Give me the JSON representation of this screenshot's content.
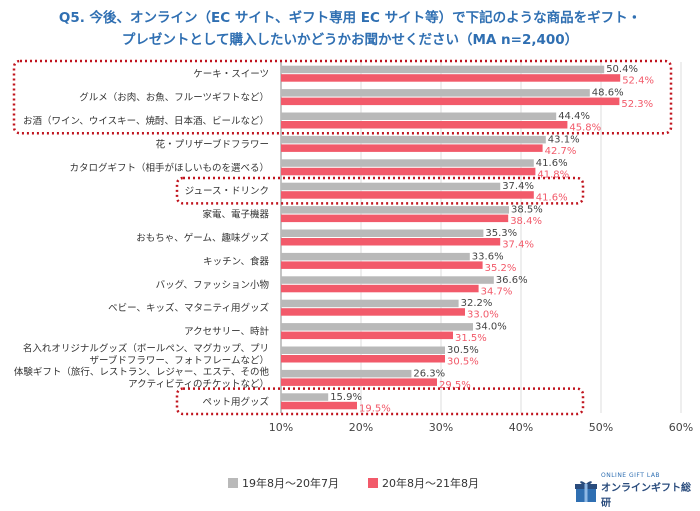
{
  "title_line1": "Q5. 今後、オンライン（EC サイト、ギフト専用 EC サイト等）で下記のような商品をギフト・",
  "title_line2": "プレゼントとして購入したいかどうかお聞かせください（MA n=2,400）",
  "colors": {
    "series1": "#b9b9b9",
    "series2": "#f25a6a",
    "highlight": "#c0141e",
    "title": "#2f6fb2"
  },
  "logo": {
    "small": "ONLINE GIFT LAB",
    "big": "オンラインギフト総研"
  },
  "chart_data": {
    "type": "bar",
    "orientation": "horizontal",
    "categories": [
      "ケーキ・スイーツ",
      "グルメ（お肉、お魚、フルーツギフトなど）",
      "お酒（ワイン、ウイスキー、焼酎、日本酒、ビールなど）",
      "花・プリザーブドフラワー",
      "カタログギフト（相手がほしいものを選べる）",
      "ジュース・ドリンク",
      "家電、電子機器",
      "おもちゃ、ゲーム、趣味グッズ",
      "キッチン、食器",
      "バッグ、ファッション小物",
      "ベビー、キッズ、マタニティ用グッズ",
      "アクセサリー、時計",
      "名入れオリジナルグッズ（ボールペン、マグカップ、プリ\nザーブドフラワー、フォトフレームなど）",
      "体験ギフト（旅行、レストラン、レジャー、エステ、その他\nアクティビティのチケットなど）",
      "ペット用グッズ"
    ],
    "series": [
      {
        "name": "19年8月～20年7月",
        "values": [
          50.4,
          48.6,
          44.4,
          43.1,
          41.6,
          37.4,
          38.5,
          35.3,
          33.6,
          36.6,
          32.2,
          34.0,
          30.5,
          26.3,
          15.9
        ]
      },
      {
        "name": "20年8月～21年8月",
        "values": [
          52.4,
          52.3,
          45.8,
          42.7,
          41.8,
          41.6,
          38.4,
          37.4,
          35.2,
          34.7,
          33.0,
          31.5,
          30.5,
          29.5,
          19.5
        ]
      }
    ],
    "xlim": [
      10,
      60
    ],
    "xticks": [
      "10%",
      "20%",
      "30%",
      "40%",
      "50%",
      "60%"
    ],
    "highlighted_categories": [
      "ケーキ・スイーツ",
      "グルメ（お肉、お魚、フルーツギフトなど）",
      "お酒（ワイン、ウイスキー、焼酎、日本酒、ビールなど）",
      "ジュース・ドリンク",
      "ペット用グッズ"
    ],
    "grid": true,
    "legend_position": "bottom"
  }
}
